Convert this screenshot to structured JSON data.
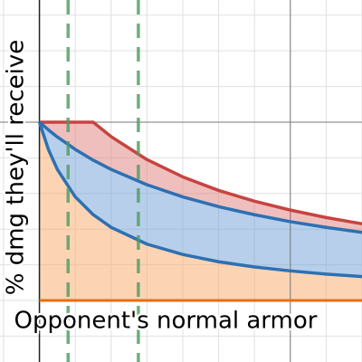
{
  "chart_data": {
    "type": "line",
    "x_label": "Opponent's normal armor",
    "y_label": "% dmg they'll receive",
    "x": [
      0,
      0.25,
      0.5,
      1,
      1.5,
      2,
      3,
      4,
      5,
      6,
      7,
      8,
      9
    ],
    "series": [
      {
        "color": "#c74440",
        "values": [
          100,
          100,
          100,
          100,
          100,
          91.9,
          79.0,
          69.3,
          61.7,
          55.7,
          50.7,
          46.5,
          43.0
        ]
      },
      {
        "color": "#2d70b3",
        "values": [
          100,
          95.7,
          91.7,
          84.7,
          78.7,
          73.5,
          64.9,
          58.1,
          52.6,
          48.1,
          44.2,
          41.0,
          38.2
        ]
      },
      {
        "color": "#2d70b3",
        "values": [
          100,
          84.7,
          73.5,
          58.1,
          48.1,
          41.0,
          31.6,
          25.8,
          21.7,
          18.8,
          16.6,
          14.8,
          13.4
        ]
      }
    ],
    "fill_colors": [
      "#f9a96a",
      "#6f9fd6",
      "#e07f7c"
    ],
    "baseline_color": "#e3700d",
    "marker_lines": {
      "x": [
        0.8,
        2.76
      ],
      "color": "#4c9a5f"
    },
    "reference_lines": {
      "x": [
        7
      ],
      "y": [
        100
      ]
    },
    "xlim": [
      -1.1,
      9
    ],
    "ylim": [
      -34.5,
      168.5
    ],
    "xticks": [
      -1,
      0,
      1,
      2,
      3,
      4,
      5,
      6,
      7,
      8,
      9
    ],
    "yticks": [
      -20,
      0,
      20,
      40,
      60,
      80,
      100,
      120,
      140,
      160
    ],
    "grid": true
  }
}
